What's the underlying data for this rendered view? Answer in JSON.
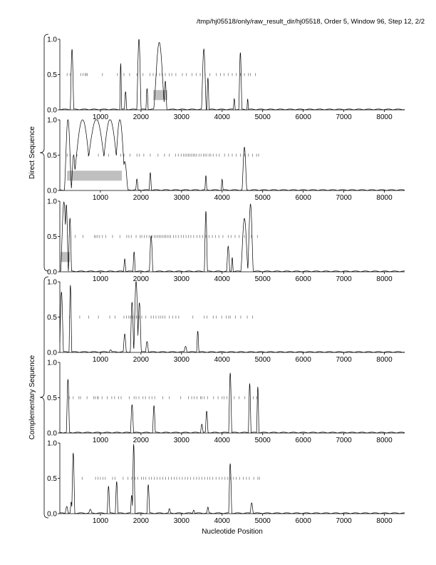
{
  "header": {
    "title": "/tmp/hj05518/only/raw_result_dir/hj05518, Order 5, Window 96, Step 12, 2/2"
  },
  "chart_data": {
    "type": "line",
    "xlabel": "Nucleotide Position",
    "group_labels": [
      "Direct Sequence",
      "Complementary Sequence"
    ],
    "xlim": [
      0,
      8500
    ],
    "ylim": [
      0,
      1
    ],
    "x_ticks": [
      1000,
      2000,
      3000,
      4000,
      5000,
      6000,
      7000,
      8000
    ],
    "y_ticks": [
      "0.0",
      "0.5",
      "1.0"
    ],
    "grid": false,
    "panels": [
      {
        "group": "Direct Sequence",
        "frame": 1,
        "peaks": [
          [
            300,
            0.85,
            45
          ],
          [
            1500,
            0.65,
            25
          ],
          [
            1620,
            0.25,
            30
          ],
          [
            1950,
            1.0,
            55
          ],
          [
            2150,
            0.3,
            30
          ],
          [
            2450,
            0.95,
            140
          ],
          [
            2600,
            0.4,
            40
          ],
          [
            3550,
            0.85,
            60
          ],
          [
            3650,
            0.45,
            30
          ],
          [
            4300,
            0.15,
            25
          ],
          [
            4450,
            0.8,
            40
          ],
          [
            4630,
            0.15,
            20
          ]
        ],
        "marks": [
          180,
          250,
          520,
          570,
          620,
          650,
          680,
          1050,
          1420,
          1580,
          1720,
          1900,
          2050,
          2220,
          2300,
          2380,
          2460,
          2520,
          2600,
          2700,
          2760,
          2860,
          3020,
          3120,
          3260,
          3360,
          3460,
          3580,
          3700,
          3860,
          3960,
          4050,
          4150,
          4250,
          4350,
          4450,
          4550,
          4650,
          4700,
          4820
        ],
        "orfs": [
          [
            2300,
            2650
          ]
        ]
      },
      {
        "group": "Direct Sequence",
        "frame": 2,
        "peaks": [
          [
            200,
            1.0,
            90
          ],
          [
            340,
            0.5,
            60
          ],
          [
            560,
            1.0,
            260
          ],
          [
            900,
            1.0,
            320
          ],
          [
            1240,
            1.0,
            260
          ],
          [
            1480,
            1.0,
            150
          ],
          [
            1600,
            0.4,
            80
          ],
          [
            1900,
            0.15,
            30
          ],
          [
            2230,
            0.25,
            30
          ],
          [
            3600,
            0.2,
            25
          ],
          [
            4000,
            0.15,
            25
          ],
          [
            4550,
            0.6,
            60
          ]
        ],
        "marks": [
          180,
          250,
          420,
          700,
          950,
          1200,
          1500,
          1580,
          1730,
          1900,
          1960,
          2070,
          2230,
          2420,
          2580,
          2700,
          2850,
          2920,
          2990,
          3050,
          3090,
          3130,
          3170,
          3210,
          3250,
          3290,
          3330,
          3370,
          3430,
          3480,
          3540,
          3580,
          3620,
          3680,
          3720,
          3780,
          3860,
          3930,
          4060,
          4160,
          4250,
          4350,
          4450,
          4550,
          4650,
          4750,
          4850,
          4900
        ],
        "orfs": [
          [
            180,
            1530
          ]
        ]
      },
      {
        "group": "Direct Sequence",
        "frame": 3,
        "peaks": [
          [
            100,
            0.98,
            80
          ],
          [
            160,
            0.95,
            50
          ],
          [
            250,
            0.75,
            40
          ],
          [
            1600,
            0.18,
            30
          ],
          [
            1830,
            0.28,
            30
          ],
          [
            2250,
            0.5,
            45
          ],
          [
            3600,
            0.85,
            40
          ],
          [
            4150,
            0.35,
            40
          ],
          [
            4250,
            0.2,
            25
          ],
          [
            4550,
            0.75,
            90
          ],
          [
            4700,
            0.95,
            70
          ]
        ],
        "marks": [
          230,
          380,
          570,
          850,
          890,
          930,
          980,
          1050,
          1130,
          1300,
          1480,
          1650,
          1700,
          1760,
          1880,
          1980,
          2020,
          2080,
          2140,
          2200,
          2270,
          2330,
          2370,
          2410,
          2450,
          2490,
          2530,
          2570,
          2610,
          2650,
          2690,
          2730,
          2800,
          2860,
          2920,
          2990,
          3050,
          3110,
          3170,
          3230,
          3300,
          3380,
          3450,
          3520,
          3600,
          3680,
          3760,
          3840,
          3920,
          4020,
          4150,
          4220,
          4320,
          4420,
          4550,
          4720,
          4870
        ],
        "orfs": [
          [
            20,
            250
          ]
        ]
      },
      {
        "group": "Complementary Sequence",
        "frame": 1,
        "peaks": [
          [
            40,
            0.85,
            50
          ],
          [
            260,
            0.95,
            35
          ],
          [
            1250,
            0.03,
            40
          ],
          [
            1600,
            0.25,
            40
          ],
          [
            1780,
            0.7,
            45
          ],
          [
            1880,
            1.0,
            60
          ],
          [
            1960,
            0.7,
            50
          ],
          [
            2150,
            0.15,
            40
          ],
          [
            3100,
            0.08,
            40
          ],
          [
            3400,
            0.3,
            30
          ]
        ],
        "marks": [
          240,
          490,
          710,
          950,
          1230,
          1360,
          1580,
          1640,
          1700,
          1740,
          1790,
          1840,
          1890,
          1950,
          2020,
          2120,
          2250,
          2310,
          2370,
          2440,
          2490,
          2540,
          2590,
          2700,
          2780,
          2860,
          2930,
          3280,
          3560,
          3630,
          3780,
          3860,
          3990,
          4100,
          4160,
          4200,
          4330,
          4460,
          4620,
          4750
        ],
        "orfs": []
      },
      {
        "group": "Complementary Sequence",
        "frame": 2,
        "peaks": [
          [
            200,
            0.75,
            40
          ],
          [
            1780,
            0.4,
            40
          ],
          [
            2320,
            0.38,
            35
          ],
          [
            3500,
            0.12,
            35
          ],
          [
            3620,
            0.3,
            35
          ],
          [
            4200,
            0.85,
            40
          ],
          [
            4680,
            0.7,
            35
          ],
          [
            4880,
            0.65,
            30
          ]
        ],
        "marks": [
          230,
          330,
          470,
          510,
          670,
          830,
          870,
          920,
          950,
          1040,
          1170,
          1280,
          1350,
          1450,
          1510,
          1710,
          1830,
          1880,
          1950,
          2050,
          2110,
          2200,
          2270,
          2340,
          2540,
          2700,
          2980,
          3170,
          3250,
          3310,
          3380,
          3470,
          3500,
          3560,
          3640,
          3790,
          3900,
          4000,
          4050,
          4120,
          4300,
          4420,
          4560,
          4770,
          4850
        ],
        "orfs": []
      },
      {
        "group": "Complementary Sequence",
        "frame": 3,
        "peaks": [
          [
            170,
            0.1,
            40
          ],
          [
            280,
            0.15,
            30
          ],
          [
            330,
            0.85,
            40
          ],
          [
            750,
            0.05,
            40
          ],
          [
            1200,
            0.38,
            35
          ],
          [
            1400,
            0.45,
            35
          ],
          [
            1770,
            0.25,
            30
          ],
          [
            1820,
            0.98,
            35
          ],
          [
            2180,
            0.4,
            35
          ],
          [
            2700,
            0.06,
            30
          ],
          [
            3300,
            0.05,
            30
          ],
          [
            3650,
            0.08,
            30
          ],
          [
            4200,
            0.7,
            40
          ],
          [
            4730,
            0.15,
            40
          ]
        ],
        "marks": [
          550,
          880,
          940,
          1000,
          1060,
          1120,
          1300,
          1360,
          1560,
          1680,
          1770,
          1850,
          1920,
          2010,
          2060,
          2120,
          2200,
          2260,
          2330,
          2400,
          2470,
          2540,
          2610,
          2680,
          2750,
          2820,
          2880,
          2950,
          3020,
          3090,
          3150,
          3220,
          3300,
          3370,
          3430,
          3500,
          3570,
          3640,
          3700,
          3770,
          3850,
          3930,
          4000,
          4070,
          4140,
          4210,
          4280,
          4350,
          4430,
          4520,
          4600,
          4670,
          4780,
          4880,
          4920
        ],
        "orfs": []
      }
    ]
  }
}
